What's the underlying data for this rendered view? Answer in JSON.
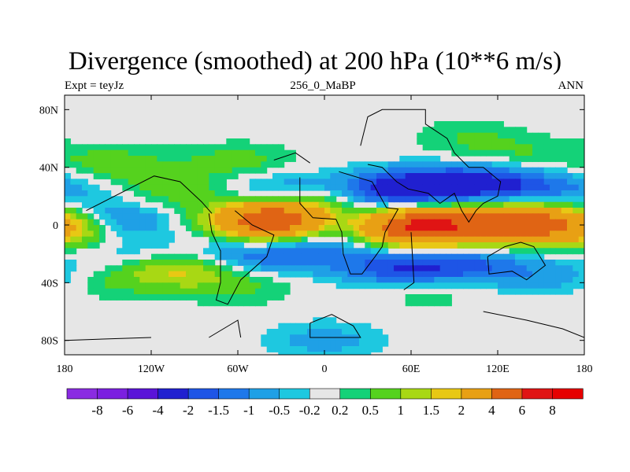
{
  "chart_data": {
    "type": "heatmap",
    "title": "Divergence (smoothed) at 200 hPa (10**6 m/s)",
    "left_string": "Expt = teyJz",
    "center_string": "256_0_MaBP",
    "right_string": "ANN",
    "x_ticks": [
      "180",
      "120W",
      "60W",
      "0",
      "60E",
      "120E",
      "180"
    ],
    "y_ticks": [
      "80N",
      "40N",
      "0",
      "40S",
      "80S"
    ],
    "xlim": [
      -180,
      180
    ],
    "ylim": [
      -90,
      90
    ],
    "levels": [
      "-8",
      "-6",
      "-4",
      "-2",
      "-1.5",
      "-1",
      "-0.5",
      "-0.2",
      "0.2",
      "0.5",
      "1",
      "1.5",
      "2",
      "4",
      "6",
      "8"
    ],
    "colors": [
      "#8a2be2",
      "#7b1fe0",
      "#5a14d8",
      "#2020d0",
      "#1e55e6",
      "#1e78ea",
      "#1fa0e6",
      "#1ec8e0",
      "#e6e6e6",
      "#14d278",
      "#55d21e",
      "#a8d814",
      "#e8c814",
      "#e8a014",
      "#e06414",
      "#e01414",
      "#e60000"
    ],
    "missing_color": "#e6e6e6",
    "features": [
      {
        "lon": -150,
        "lat": 44,
        "value": 0.6
      },
      {
        "lon": -60,
        "lat": 44,
        "value": 0.7
      },
      {
        "lon": 140,
        "lat": 48,
        "value": 0.5
      },
      {
        "lon": 100,
        "lat": 60,
        "value": 0.5
      },
      {
        "lon": -130,
        "lat": 30,
        "value": 0.7
      },
      {
        "lon": -150,
        "lat": 25,
        "value": -0.6
      },
      {
        "lon": -100,
        "lat": 22,
        "value": 0.6
      },
      {
        "lon": -30,
        "lat": 24,
        "value": -1.0
      },
      {
        "lon": 10,
        "lat": 18,
        "value": 1.2
      },
      {
        "lon": 40,
        "lat": 24,
        "value": -2.0
      },
      {
        "lon": 75,
        "lat": 26,
        "value": -1.8
      },
      {
        "lon": 110,
        "lat": 30,
        "value": -1.5
      },
      {
        "lon": 150,
        "lat": 25,
        "value": -1.2
      },
      {
        "lon": -150,
        "lat": 2,
        "value": -1.8
      },
      {
        "lon": -175,
        "lat": -2,
        "value": 2.2
      },
      {
        "lon": -40,
        "lat": 4,
        "value": 2.5
      },
      {
        "lon": -30,
        "lat": 2,
        "value": 4.0
      },
      {
        "lon": -5,
        "lat": -2,
        "value": -1.5
      },
      {
        "lon": 60,
        "lat": -2,
        "value": 2.8
      },
      {
        "lon": 70,
        "lat": 0,
        "value": 4.0
      },
      {
        "lon": 145,
        "lat": 2,
        "value": 3.0
      },
      {
        "lon": 125,
        "lat": -1,
        "value": 2.5
      },
      {
        "lon": -130,
        "lat": -22,
        "value": -0.7
      },
      {
        "lon": -100,
        "lat": -30,
        "value": 1.8
      },
      {
        "lon": -60,
        "lat": -22,
        "value": -1.2
      },
      {
        "lon": -10,
        "lat": -20,
        "value": -1.0
      },
      {
        "lon": 50,
        "lat": -30,
        "value": -1.8
      },
      {
        "lon": 100,
        "lat": -28,
        "value": -1.5
      },
      {
        "lon": 160,
        "lat": -35,
        "value": -0.8
      },
      {
        "lon": -150,
        "lat": -38,
        "value": 0.6
      },
      {
        "lon": -60,
        "lat": -42,
        "value": 0.6
      },
      {
        "lon": 70,
        "lat": -45,
        "value": 0.5
      },
      {
        "lon": 0,
        "lat": -80,
        "value": -0.7
      },
      {
        "lon": 30,
        "lat": 10,
        "value": -0.6
      }
    ]
  }
}
